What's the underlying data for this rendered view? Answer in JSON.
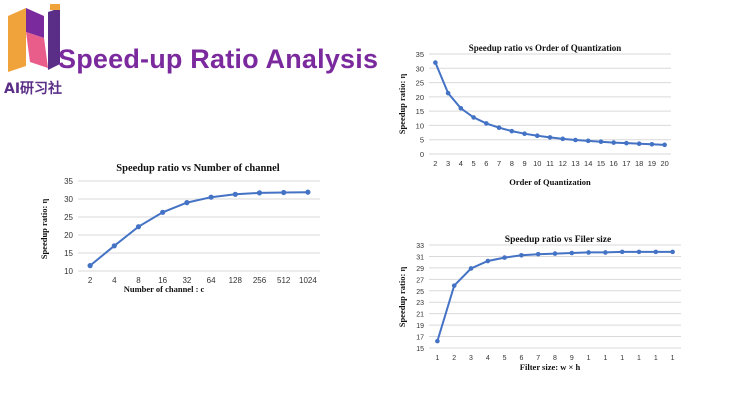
{
  "slide": {
    "title": "Speed-up Ratio Analysis",
    "logo_text": "AI研习社",
    "colors": {
      "title": "#7b2a9e",
      "series": "#4472c4",
      "logo": "#5a2e86"
    }
  },
  "chart_data": [
    {
      "type": "line",
      "title": "Speedup ratio vs Number of channel",
      "xlabel": "Number of channel : c",
      "ylabel": "Speedup ratio: η",
      "categories": [
        "2",
        "4",
        "8",
        "16",
        "32",
        "64",
        "128",
        "256",
        "512",
        "1024"
      ],
      "series": [
        {
          "values": [
            11.5,
            17,
            22.3,
            26.3,
            29,
            30.5,
            31.3,
            31.7,
            31.8,
            31.9
          ]
        }
      ],
      "ylim": [
        10,
        35
      ],
      "yticks": [
        10,
        15,
        20,
        25,
        30,
        35
      ],
      "grid": true
    },
    {
      "type": "line",
      "title": "Speedup ratio vs Order of Quantization",
      "xlabel": "Order of Quantization",
      "ylabel": "Speedup ratio: η",
      "categories": [
        "2",
        "3",
        "4",
        "5",
        "6",
        "7",
        "8",
        "9",
        "10",
        "11",
        "12",
        "13",
        "14",
        "15",
        "16",
        "17",
        "18",
        "19",
        "20"
      ],
      "series": [
        {
          "values": [
            32,
            21.3,
            16,
            12.8,
            10.7,
            9.2,
            8,
            7.1,
            6.4,
            5.8,
            5.3,
            4.9,
            4.6,
            4.3,
            4,
            3.8,
            3.6,
            3.4,
            3.2
          ]
        }
      ],
      "ylim": [
        0,
        35
      ],
      "yticks": [
        0,
        5,
        10,
        15,
        20,
        25,
        30,
        35
      ],
      "grid": true
    },
    {
      "type": "line",
      "title": "Speedup ratio vs Filer size",
      "xlabel": "Filter size: w × h",
      "ylabel": "Speedup ratio: η",
      "categories": [
        "1",
        "2",
        "3",
        "4",
        "5",
        "6",
        "7",
        "8",
        "9",
        "1",
        "1",
        "1",
        "1",
        "1",
        "1"
      ],
      "series": [
        {
          "values": [
            16.2,
            25.9,
            28.9,
            30.2,
            30.8,
            31.2,
            31.4,
            31.5,
            31.6,
            31.7,
            31.7,
            31.8,
            31.8,
            31.8,
            31.8
          ]
        }
      ],
      "ylim": [
        15,
        33
      ],
      "yticks": [
        15,
        17,
        19,
        21,
        23,
        25,
        27,
        29,
        31,
        33
      ],
      "grid": true
    }
  ]
}
